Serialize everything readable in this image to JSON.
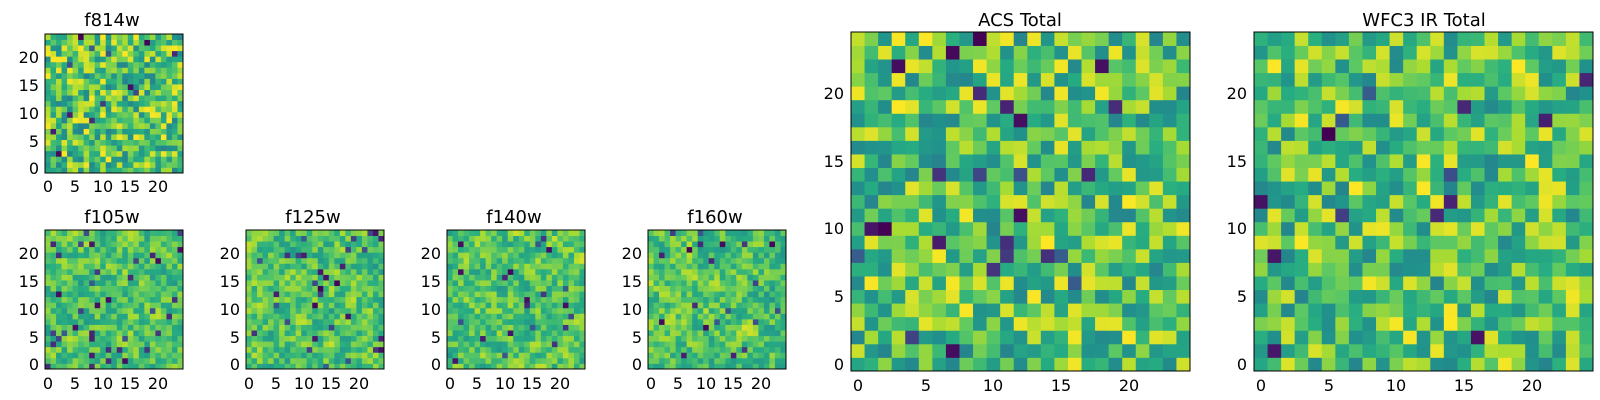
{
  "chart_data": [
    {
      "type": "heatmap",
      "title": "f814w",
      "xticks": [
        "0",
        "5",
        "10",
        "15",
        "20"
      ],
      "yticks": [
        "0",
        "5",
        "10",
        "15",
        "20"
      ],
      "xlim": [
        -0.5,
        24.5
      ],
      "ylim": [
        -0.5,
        24.5
      ],
      "grid_size": [
        25,
        25
      ],
      "seed": 11,
      "blur": 0,
      "spike_rate": 0.03,
      "cmap": "viridis"
    },
    {
      "type": "heatmap",
      "title": "f105w",
      "xticks": [
        "0",
        "5",
        "10",
        "15",
        "20"
      ],
      "yticks": [
        "0",
        "5",
        "10",
        "15",
        "20"
      ],
      "xlim": [
        -0.5,
        24.5
      ],
      "ylim": [
        -0.5,
        24.5
      ],
      "grid_size": [
        25,
        25
      ],
      "seed": 23,
      "blur": 1,
      "spike_rate": 0.05,
      "cmap": "viridis"
    },
    {
      "type": "heatmap",
      "title": "f125w",
      "xticks": [
        "0",
        "5",
        "10",
        "15",
        "20"
      ],
      "yticks": [
        "0",
        "5",
        "10",
        "15",
        "20"
      ],
      "xlim": [
        -0.5,
        24.5
      ],
      "ylim": [
        -0.5,
        24.5
      ],
      "grid_size": [
        25,
        25
      ],
      "seed": 37,
      "blur": 1,
      "spike_rate": 0.05,
      "cmap": "viridis"
    },
    {
      "type": "heatmap",
      "title": "f140w",
      "xticks": [
        "0",
        "5",
        "10",
        "15",
        "20"
      ],
      "yticks": [
        "0",
        "5",
        "10",
        "15",
        "20"
      ],
      "xlim": [
        -0.5,
        24.5
      ],
      "ylim": [
        -0.5,
        24.5
      ],
      "grid_size": [
        25,
        25
      ],
      "seed": 41,
      "blur": 1,
      "spike_rate": 0.04,
      "cmap": "viridis"
    },
    {
      "type": "heatmap",
      "title": "f160w",
      "xticks": [
        "0",
        "5",
        "10",
        "15",
        "20"
      ],
      "yticks": [
        "0",
        "5",
        "10",
        "15",
        "20"
      ],
      "xlim": [
        -0.5,
        24.5
      ],
      "ylim": [
        -0.5,
        24.5
      ],
      "grid_size": [
        25,
        25
      ],
      "seed": 53,
      "blur": 1,
      "spike_rate": 0.04,
      "cmap": "viridis"
    },
    {
      "type": "heatmap",
      "title": "ACS Total",
      "xticks": [
        "0",
        "5",
        "10",
        "15",
        "20"
      ],
      "yticks": [
        "0",
        "5",
        "10",
        "15",
        "20"
      ],
      "xlim": [
        -0.5,
        24.5
      ],
      "ylim": [
        -0.5,
        24.5
      ],
      "grid_size": [
        25,
        25
      ],
      "seed": 67,
      "blur": 0,
      "spike_rate": 0.03,
      "cmap": "viridis"
    },
    {
      "type": "heatmap",
      "title": "WFC3 IR Total",
      "xticks": [
        "0",
        "5",
        "10",
        "15",
        "20"
      ],
      "yticks": [
        "0",
        "5",
        "10",
        "15",
        "20"
      ],
      "xlim": [
        -0.5,
        24.5
      ],
      "ylim": [
        -0.5,
        24.5
      ],
      "grid_size": [
        25,
        25
      ],
      "seed": 79,
      "blur": 0,
      "spike_rate": 0.03,
      "cmap": "viridis"
    }
  ]
}
